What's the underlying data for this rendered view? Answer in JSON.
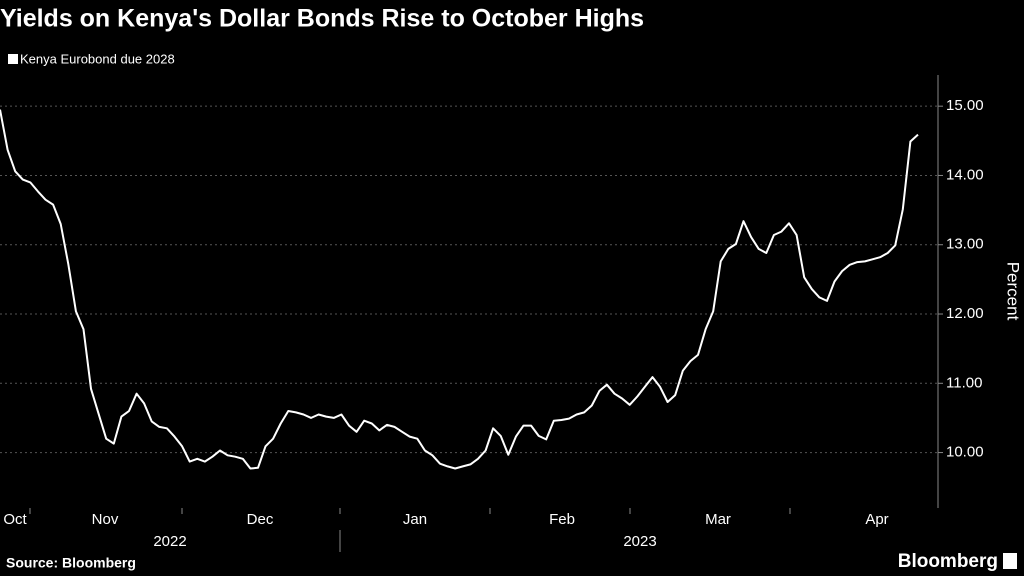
{
  "chart_data": {
    "type": "line",
    "title": "Yields on Kenya's Dollar Bonds Rise to October Highs",
    "series": [
      {
        "name": "Kenya Eurobond due 2028",
        "color": "#ffffff",
        "values": [
          14.95,
          14.37,
          14.06,
          13.94,
          13.9,
          13.77,
          13.65,
          13.58,
          13.3,
          12.72,
          12.04,
          11.78,
          10.92,
          10.56,
          10.2,
          10.13,
          10.52,
          10.6,
          10.85,
          10.71,
          10.45,
          10.37,
          10.35,
          10.23,
          10.09,
          9.87,
          9.91,
          9.87,
          9.94,
          10.03,
          9.96,
          9.94,
          9.91,
          9.77,
          9.78,
          10.09,
          10.2,
          10.42,
          10.6,
          10.58,
          10.55,
          10.5,
          10.55,
          10.52,
          10.5,
          10.55,
          10.39,
          10.3,
          10.46,
          10.42,
          10.32,
          10.4,
          10.37,
          10.3,
          10.23,
          10.2,
          10.03,
          9.96,
          9.84,
          9.8,
          9.77,
          9.8,
          9.83,
          9.91,
          10.03,
          10.35,
          10.24,
          9.97,
          10.23,
          10.39,
          10.39,
          10.24,
          10.19,
          10.46,
          10.47,
          10.49,
          10.55,
          10.58,
          10.68,
          10.89,
          10.98,
          10.85,
          10.78,
          10.69,
          10.81,
          10.95,
          11.09,
          10.95,
          10.73,
          10.83,
          11.18,
          11.32,
          11.41,
          11.78,
          12.04,
          12.76,
          12.94,
          13.01,
          13.34,
          13.11,
          12.94,
          12.88,
          13.14,
          13.19,
          13.31,
          13.14,
          12.53,
          12.36,
          12.24,
          12.19,
          12.47,
          12.62,
          12.71,
          12.75,
          12.76,
          12.79,
          12.82,
          12.88,
          12.99,
          13.51,
          14.49,
          14.59
        ]
      }
    ],
    "ylim": [
      9.2,
      15.45
    ],
    "yticks": [
      {
        "value": 10,
        "label": "10.00"
      },
      {
        "value": 11,
        "label": "11.00"
      },
      {
        "value": 12,
        "label": "12.00"
      },
      {
        "value": 13,
        "label": "13.00"
      },
      {
        "value": 14,
        "label": "14.00"
      },
      {
        "value": 15,
        "label": "15.00"
      }
    ],
    "y_label": "Percent",
    "grid": true,
    "x_labels": [
      "Oct",
      "Nov",
      "Dec",
      "Jan",
      "Feb",
      "Mar",
      "Apr"
    ],
    "year_labels": [
      "2022",
      "2023"
    ],
    "source": "Source: Bloomberg",
    "brand": "Bloomberg"
  }
}
